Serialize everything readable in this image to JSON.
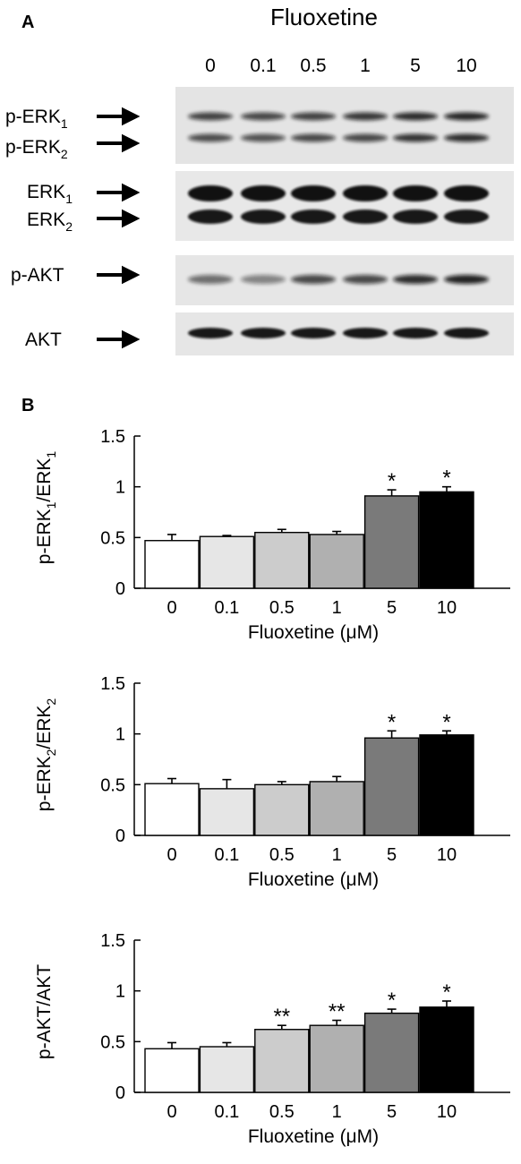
{
  "panel_a": {
    "label": "A",
    "treatment": "Fluoxetine",
    "lanes": [
      "0",
      "0.1",
      "0.5",
      "1",
      "5",
      "10"
    ],
    "blots": [
      {
        "id": "perk",
        "rows": [
          {
            "base": "p-ERK",
            "sub": "1"
          },
          {
            "base": "p-ERK",
            "sub": "2"
          }
        ]
      },
      {
        "id": "erk",
        "rows": [
          {
            "base": "ERK",
            "sub": "1"
          },
          {
            "base": "ERK",
            "sub": "2"
          }
        ]
      },
      {
        "id": "pakt",
        "rows": [
          {
            "base": "p-AKT",
            "sub": ""
          }
        ]
      },
      {
        "id": "akt",
        "rows": [
          {
            "base": "AKT",
            "sub": ""
          }
        ]
      }
    ]
  },
  "panel_b": {
    "label": "B"
  },
  "colors": {
    "bars": [
      "#ffffff",
      "#e6e6e6",
      "#cccccc",
      "#b0b0b0",
      "#7a7a7a",
      "#000000"
    ],
    "axis": "#000000"
  },
  "chart_data": [
    {
      "type": "bar",
      "title": "",
      "categories": [
        "0",
        "0.1",
        "0.5",
        "1",
        "5",
        "10"
      ],
      "values": [
        0.47,
        0.51,
        0.55,
        0.53,
        0.91,
        0.95
      ],
      "errors": [
        0.06,
        0.01,
        0.03,
        0.03,
        0.06,
        0.05
      ],
      "significance": [
        "",
        "",
        "",
        "",
        "*",
        "*"
      ],
      "xlabel": "Fluoxetine (μM)",
      "ylabel": {
        "p1": "p-ERK",
        "s1": "1",
        "p2": "/ERK",
        "s2": "1"
      },
      "ylim": [
        0,
        1.5
      ],
      "yticks": [
        "0",
        "0.5",
        "1",
        "1.5"
      ],
      "grid": false
    },
    {
      "type": "bar",
      "title": "",
      "categories": [
        "0",
        "0.1",
        "0.5",
        "1",
        "5",
        "10"
      ],
      "values": [
        0.51,
        0.46,
        0.5,
        0.53,
        0.96,
        0.99
      ],
      "errors": [
        0.05,
        0.09,
        0.03,
        0.05,
        0.07,
        0.04
      ],
      "significance": [
        "",
        "",
        "",
        "",
        "*",
        "*"
      ],
      "xlabel": "Fluoxetine (μM)",
      "ylabel": {
        "p1": "p-ERK",
        "s1": "2",
        "p2": "/ERK",
        "s2": "2"
      },
      "ylim": [
        0,
        1.5
      ],
      "yticks": [
        "0",
        "0.5",
        "1",
        "1.5"
      ],
      "grid": false
    },
    {
      "type": "bar",
      "title": "",
      "categories": [
        "0",
        "0.1",
        "0.5",
        "1",
        "5",
        "10"
      ],
      "values": [
        0.43,
        0.45,
        0.62,
        0.66,
        0.78,
        0.84
      ],
      "errors": [
        0.06,
        0.04,
        0.04,
        0.05,
        0.04,
        0.06
      ],
      "significance": [
        "",
        "",
        "**",
        "**",
        "*",
        "*"
      ],
      "xlabel": "Fluoxetine (μM)",
      "ylabel": {
        "p1": "p-AKT/AKT",
        "s1": "",
        "p2": "",
        "s2": ""
      },
      "ylim": [
        0,
        1.5
      ],
      "yticks": [
        "0",
        "0.5",
        "1",
        "1.5"
      ],
      "grid": false
    }
  ]
}
